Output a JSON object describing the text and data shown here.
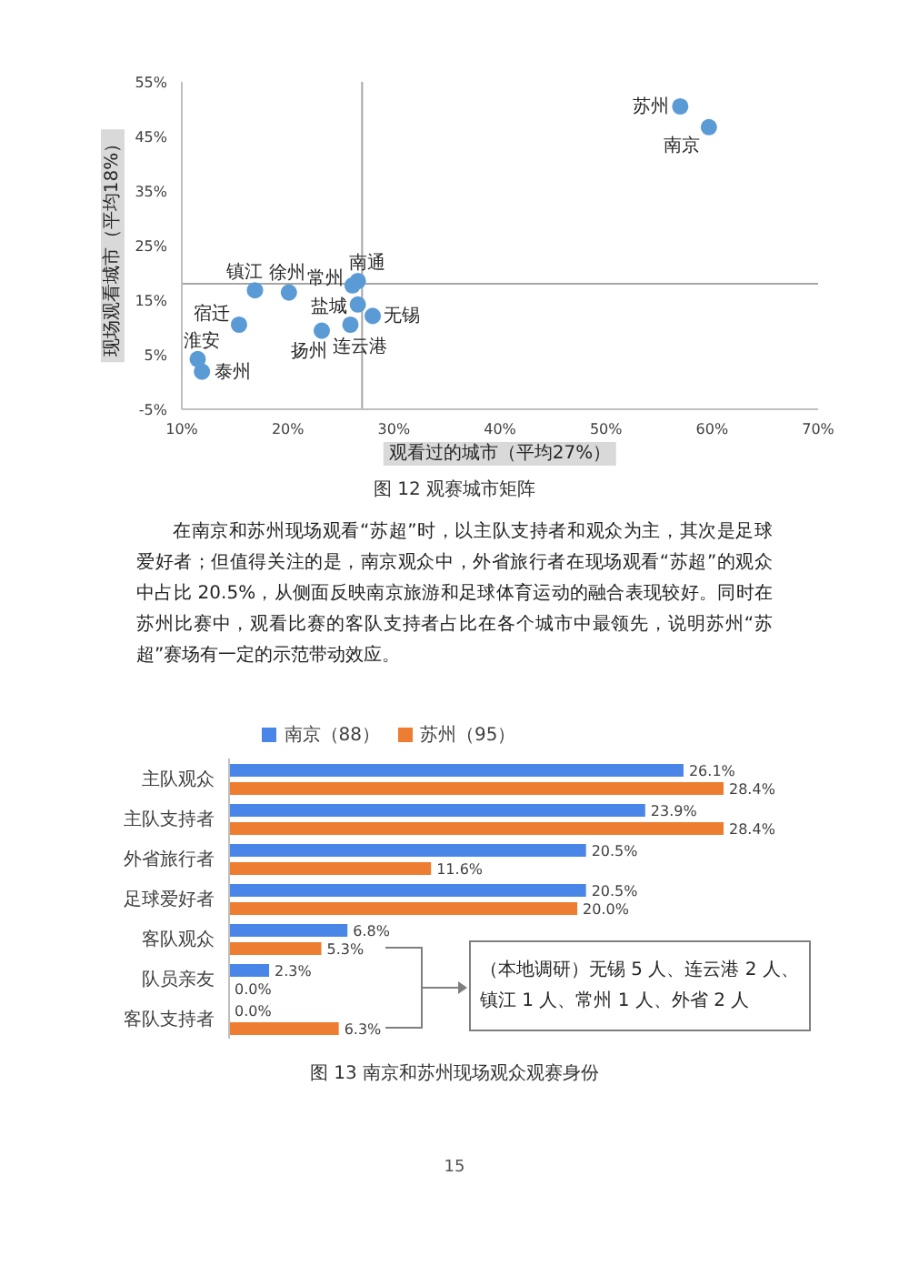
{
  "chart_data": [
    {
      "type": "scatter",
      "title": "图 12 观赛城市矩阵",
      "xlabel": "观看过的城市（平均27%）",
      "ylabel": "现场观看城市（平均18%）",
      "xlim": [
        10,
        70
      ],
      "xticks": [
        {
          "value": 10,
          "label": "10%"
        },
        {
          "value": 20,
          "label": "20%"
        },
        {
          "value": 30,
          "label": "30%"
        },
        {
          "value": 40,
          "label": "40%"
        },
        {
          "value": 50,
          "label": "50%"
        },
        {
          "value": 60,
          "label": "60%"
        },
        {
          "value": 70,
          "label": "70%"
        }
      ],
      "ylim": [
        -5,
        55
      ],
      "yticks": [
        {
          "value": -5,
          "label": "-5%"
        },
        {
          "value": 5,
          "label": "5%"
        },
        {
          "value": 15,
          "label": "15%"
        },
        {
          "value": 25,
          "label": "25%"
        },
        {
          "value": 35,
          "label": "35%"
        },
        {
          "value": 45,
          "label": "45%"
        },
        {
          "value": 55,
          "label": "55%"
        }
      ],
      "marker": "circle",
      "series": [
        {
          "name": "苏州",
          "color": "#5b9bd5",
          "x": [
            57.0
          ],
          "values": [
            50.5
          ]
        },
        {
          "name": "南京",
          "color": "#5b9bd5",
          "x": [
            59.7
          ],
          "values": [
            46.7
          ]
        },
        {
          "name": "南通",
          "color": "#5b9bd5",
          "x": [
            26.6
          ],
          "values": [
            18.5
          ]
        },
        {
          "name": "常州",
          "color": "#5b9bd5",
          "x": [
            26.1
          ],
          "values": [
            17.7
          ]
        },
        {
          "name": "镇江",
          "color": "#5b9bd5",
          "x": [
            16.9
          ],
          "values": [
            16.8
          ]
        },
        {
          "name": "徐州",
          "color": "#5b9bd5",
          "x": [
            20.1
          ],
          "values": [
            16.4
          ]
        },
        {
          "name": "盐城",
          "color": "#5b9bd5",
          "x": [
            26.6
          ],
          "values": [
            14.2
          ]
        },
        {
          "name": "无锡",
          "color": "#5b9bd5",
          "x": [
            28.0
          ],
          "values": [
            12.1
          ]
        },
        {
          "name": "宿迁",
          "color": "#5b9bd5",
          "x": [
            15.4
          ],
          "values": [
            10.5
          ]
        },
        {
          "name": "连云港",
          "color": "#5b9bd5",
          "x": [
            25.9
          ],
          "values": [
            10.5
          ]
        },
        {
          "name": "扬州",
          "color": "#5b9bd5",
          "x": [
            23.2
          ],
          "values": [
            9.4
          ]
        },
        {
          "name": "淮安",
          "color": "#5b9bd5",
          "x": [
            11.5
          ],
          "values": [
            4.2
          ]
        },
        {
          "name": "泰州",
          "color": "#5b9bd5",
          "x": [
            11.9
          ],
          "values": [
            1.9
          ]
        }
      ],
      "ref_lines": [
        {
          "axis": "x",
          "value": 27,
          "color": "#a6a6a6"
        },
        {
          "axis": "y",
          "value": 18,
          "color": "#a6a6a6"
        }
      ],
      "annotations": [
        "在南京和苏州现场观看“苏超”时，以主队支持者和观众为主，其次是足球爱好者；但值得关注的是，南京观众中，外省旅行者在现场观看“苏超”的观众中占比 20.5%，从侧面反映南京旅游和足球体育运动的融合表现较好。同时在苏州比赛中，观看比赛的客队支持者占比在各个城市中最领先，说明苏州“苏超”赛场有一定的示范带动效应。"
      ]
    },
    {
      "type": "bar",
      "orientation": "horizontal",
      "title": "图 13 南京和苏州现场观众观赛身份",
      "categories": [
        "主队观众",
        "主队支持者",
        "外省旅行者",
        "足球爱好者",
        "客队观众",
        "队员亲友",
        "客队支持者"
      ],
      "series": [
        {
          "name": "南京（88）",
          "color": "#4a86e8",
          "values": [
            26.1,
            23.9,
            20.5,
            20.5,
            6.8,
            2.3,
            0.0
          ],
          "value_labels": [
            "26.1%",
            "23.9%",
            "20.5%",
            "20.5%",
            "6.8%",
            "2.3%",
            "0.0%"
          ]
        },
        {
          "name": "苏州（95）",
          "color": "#ed7d31",
          "values": [
            28.4,
            28.4,
            11.6,
            20.0,
            5.3,
            0.0,
            6.3
          ],
          "value_labels": [
            "28.4%",
            "28.4%",
            "11.6%",
            "20.0%",
            "5.3%",
            "0.0%",
            "6.3%"
          ]
        }
      ],
      "legend": "top",
      "annotations": [
        "（本地调研）无锡 5 人、连云港 2 人、镇江 1 人、常州 1 人、外省 2 人",
        "15"
      ]
    }
  ]
}
